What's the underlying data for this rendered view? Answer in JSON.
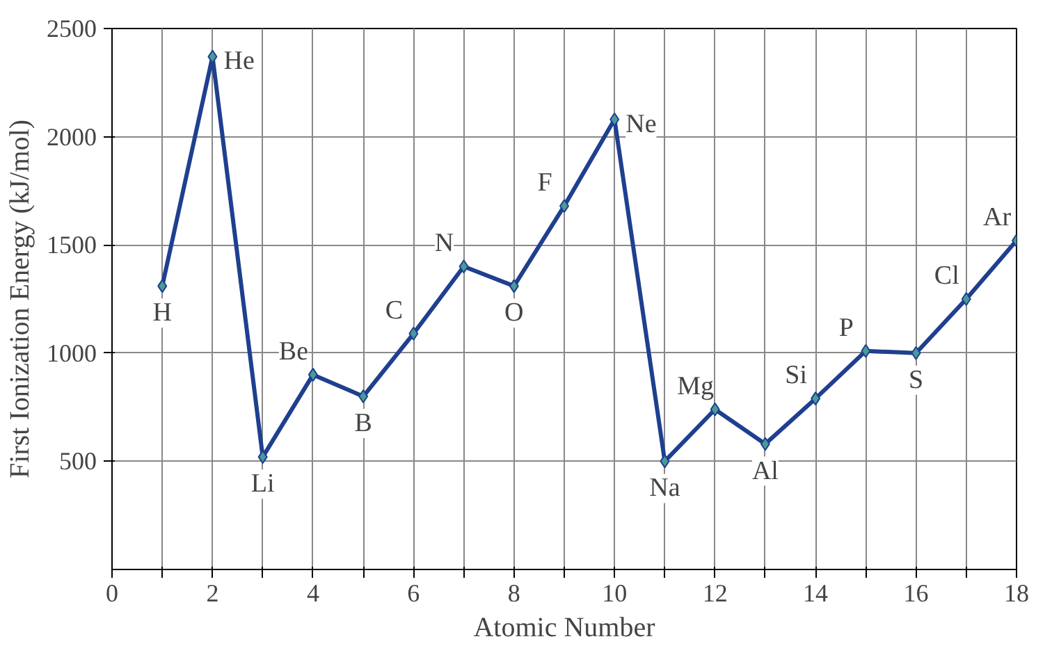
{
  "chart_data": {
    "type": "line",
    "xlabel": "Atomic Number",
    "ylabel": "First Ionization Energy (kJ/mol)",
    "x": [
      1,
      2,
      3,
      4,
      5,
      6,
      7,
      8,
      9,
      10,
      11,
      12,
      13,
      14,
      15,
      16,
      17,
      18
    ],
    "series": [
      {
        "color": "#1f3f8f",
        "values": [
          1310,
          2370,
          520,
          900,
          800,
          1090,
          1400,
          1310,
          1680,
          2080,
          500,
          740,
          580,
          790,
          1010,
          1000,
          1250,
          1520
        ]
      }
    ],
    "xlim": [
      0,
      18
    ],
    "ylim": [
      0,
      2500
    ],
    "xticks": [
      0,
      {
        "value": 1,
        "label": null
      },
      2,
      {
        "value": 3,
        "label": null
      },
      4,
      {
        "value": 5,
        "label": null
      },
      6,
      {
        "value": 7,
        "label": null
      },
      8,
      {
        "value": 9,
        "label": null
      },
      10,
      {
        "value": 11,
        "label": null
      },
      12,
      {
        "value": 13,
        "label": null
      },
      14,
      {
        "value": 15,
        "label": null
      },
      16,
      {
        "value": 17,
        "label": null
      },
      18
    ],
    "yticks": [
      500,
      1000,
      1500,
      2000,
      2500
    ],
    "grid": true,
    "marker": "diamond",
    "line_style": "solid",
    "annotations": [
      {
        "text": "H",
        "x": 1,
        "y": 1310
      },
      {
        "text": "He",
        "x": 2,
        "y": 2370
      },
      {
        "text": "Li",
        "x": 3,
        "y": 520
      },
      {
        "text": "Be",
        "x": 4,
        "y": 900
      },
      {
        "text": "B",
        "x": 5,
        "y": 800
      },
      {
        "text": "C",
        "x": 6,
        "y": 1090
      },
      {
        "text": "N",
        "x": 7,
        "y": 1400
      },
      {
        "text": "O",
        "x": 8,
        "y": 1310
      },
      {
        "text": "F",
        "x": 9,
        "y": 1680
      },
      {
        "text": "Ne",
        "x": 10,
        "y": 2080
      },
      {
        "text": "Na",
        "x": 11,
        "y": 500
      },
      {
        "text": "Mg",
        "x": 12,
        "y": 740
      },
      {
        "text": "Al",
        "x": 13,
        "y": 580
      },
      {
        "text": "Si",
        "x": 14,
        "y": 790
      },
      {
        "text": "P",
        "x": 15,
        "y": 1010
      },
      {
        "text": "S",
        "x": 16,
        "y": 1000
      },
      {
        "text": "Cl",
        "x": 17,
        "y": 1250
      },
      {
        "text": "Ar",
        "x": 18,
        "y": 1520
      }
    ]
  }
}
